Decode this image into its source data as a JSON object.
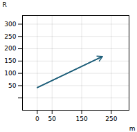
{
  "chart_data": {
    "type": "line",
    "x": [
      0,
      220
    ],
    "values": [
      42,
      168.5
    ],
    "color": "#1f5f7a",
    "marker": "arrow",
    "xlabel": "m",
    "ylabel": "R",
    "xlim": [
      -50,
      310
    ],
    "ylim": [
      -50,
      335
    ],
    "xticks": [
      0,
      50,
      150,
      250
    ],
    "yticks": [
      {
        "value": 0,
        "label": ""
      },
      50,
      100,
      150,
      200,
      250,
      300
    ],
    "grid": true
  }
}
